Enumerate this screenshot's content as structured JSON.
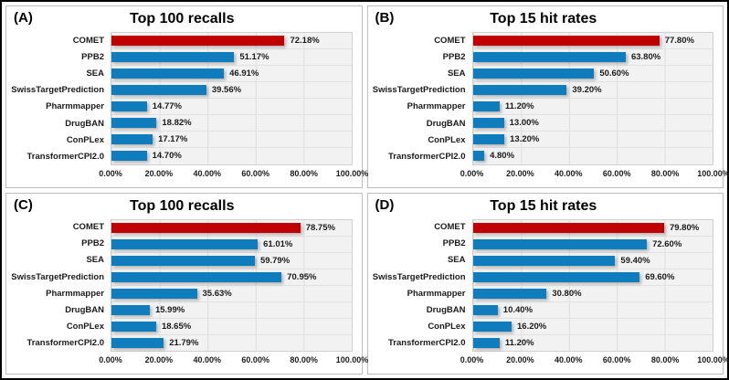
{
  "colors": {
    "bar_highlight": "#c00000",
    "bar_default": "#0e7cbd",
    "plot_background": "#f2f2f2",
    "gridline": "#dedede",
    "panel_border": "#bdbdbd",
    "text": "#1a1a1a"
  },
  "chart_data": [
    {
      "type": "bar",
      "orientation": "horizontal",
      "panel_label": "(A)",
      "title": "Top 100 recalls",
      "categories": [
        "COMET",
        "PPB2",
        "SEA",
        "SwissTargetPrediction",
        "Pharmmapper",
        "DrugBAN",
        "ConPLex",
        "TransformerCPI2.0"
      ],
      "values": [
        72.18,
        51.17,
        46.91,
        39.56,
        14.77,
        18.82,
        17.17,
        14.7
      ],
      "value_labels": [
        "72.18%",
        "51.17%",
        "46.91%",
        "39.56%",
        "14.77%",
        "18.82%",
        "17.17%",
        "14.70%"
      ],
      "highlight_index": 0,
      "xlim": [
        0,
        100
      ],
      "x_ticks": [
        "0.00%",
        "20.00%",
        "40.00%",
        "60.00%",
        "80.00%",
        "100.00%"
      ],
      "grid": true,
      "legend": false
    },
    {
      "type": "bar",
      "orientation": "horizontal",
      "panel_label": "(B)",
      "title": "Top 15 hit rates",
      "categories": [
        "COMET",
        "PPB2",
        "SEA",
        "SwissTargetPrediction",
        "Pharmmapper",
        "DrugBAN",
        "ConPLex",
        "TransformerCPI2.0"
      ],
      "values": [
        77.8,
        63.8,
        50.6,
        39.2,
        11.2,
        13.0,
        13.2,
        4.8
      ],
      "value_labels": [
        "77.80%",
        "63.80%",
        "50.60%",
        "39.20%",
        "11.20%",
        "13.00%",
        "13.20%",
        "4.80%"
      ],
      "highlight_index": 0,
      "xlim": [
        0,
        100
      ],
      "x_ticks": [
        "0.00%",
        "20.00%",
        "40.00%",
        "60.00%",
        "80.00%",
        "100.00%"
      ],
      "grid": true,
      "legend": false
    },
    {
      "type": "bar",
      "orientation": "horizontal",
      "panel_label": "(C)",
      "title": "Top 100 recalls",
      "categories": [
        "COMET",
        "PPB2",
        "SEA",
        "SwissTargetPrediction",
        "Pharmmapper",
        "DrugBAN",
        "ConPLex",
        "TransformerCPI2.0"
      ],
      "values": [
        78.75,
        61.01,
        59.79,
        70.95,
        35.63,
        15.99,
        18.65,
        21.79
      ],
      "value_labels": [
        "78.75%",
        "61.01%",
        "59.79%",
        "70.95%",
        "35.63%",
        "15.99%",
        "18.65%",
        "21.79%"
      ],
      "highlight_index": 0,
      "xlim": [
        0,
        100
      ],
      "x_ticks": [
        "0.00%",
        "20.00%",
        "40.00%",
        "60.00%",
        "80.00%",
        "100.00%"
      ],
      "grid": true,
      "legend": false
    },
    {
      "type": "bar",
      "orientation": "horizontal",
      "panel_label": "(D)",
      "title": "Top 15 hit rates",
      "categories": [
        "COMET",
        "PPB2",
        "SEA",
        "SwissTargetPrediction",
        "Pharmmapper",
        "DrugBAN",
        "ConPLex",
        "TransformerCPI2.0"
      ],
      "values": [
        79.8,
        72.6,
        59.4,
        69.6,
        30.8,
        10.4,
        16.2,
        11.2
      ],
      "value_labels": [
        "79.80%",
        "72.60%",
        "59.40%",
        "69.60%",
        "30.80%",
        "10.40%",
        "16.20%",
        "11.20%"
      ],
      "highlight_index": 0,
      "xlim": [
        0,
        100
      ],
      "x_ticks": [
        "0.00%",
        "20.00%",
        "40.00%",
        "60.00%",
        "80.00%",
        "100.00%"
      ],
      "grid": true,
      "legend": false
    }
  ]
}
